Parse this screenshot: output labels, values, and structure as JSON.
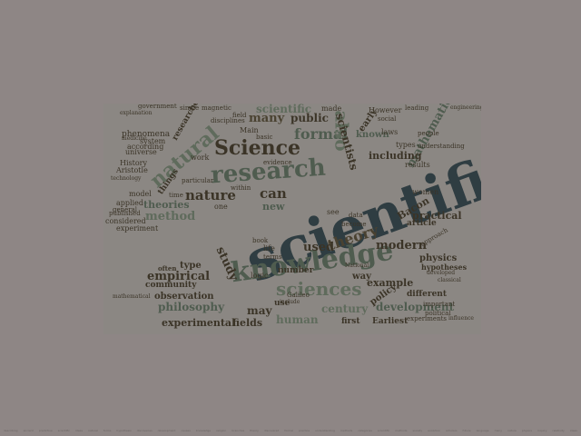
{
  "colors": {
    "background": "#8e8685",
    "cloud_background": "#8b8783",
    "dark_slate": "#2f3d42",
    "olive_green": "#4f5c4f",
    "sage": "#5f6b5c",
    "dark_brown": "#3b3427",
    "brown": "#4a4231"
  },
  "words": {
    "scientific": "scientific",
    "knowledge": "knowledge",
    "research": "research",
    "science_cap": "Science",
    "natural": "natural",
    "sciences": "sciences",
    "theory": "theory",
    "nature": "nature",
    "formal": "formal",
    "many": "many",
    "scientific_small": "scientific",
    "public": "public",
    "can": "can",
    "mathematics": "mathematics",
    "also": "also",
    "known": "known",
    "scientists": "scientists",
    "early": "early",
    "including": "including",
    "modern": "modern",
    "practical": "practical",
    "method": "method",
    "theories": "theories",
    "new": "new",
    "used": "used",
    "study": "study",
    "empirical": "empirical",
    "philosophy": "philosophy",
    "experimental": "experimental",
    "human": "human",
    "century": "century",
    "development": "development",
    "fields": "fields",
    "may": "may",
    "use": "use",
    "first": "first",
    "earliest": "Earliest",
    "observation": "observation",
    "community": "community",
    "example": "example",
    "policy": "policy",
    "different": "different",
    "number": "number",
    "way": "way",
    "physics": "physics",
    "article": "article",
    "bacon": "Bacon",
    "hypotheses": "hypotheses",
    "type": "type",
    "often": "often",
    "things": "things",
    "researchers": "researchers",
    "phenomena": "phenomena",
    "made": "made",
    "however": "However",
    "laws": "laws",
    "types": "types",
    "results": "results",
    "women": "women",
    "universe": "universe",
    "history": "History",
    "aristotle": "Aristotle",
    "experiment": "experiment",
    "considered": "considered",
    "model": "model",
    "applied": "applied",
    "general": "general",
    "published": "published",
    "according": "according",
    "system": "system",
    "work": "work",
    "main": "Main",
    "basic": "basic",
    "evidence": "evidence",
    "time": "time",
    "one": "one",
    "see": "see",
    "life": "life",
    "logic": "logic",
    "important": "important",
    "political": "political",
    "experiments": "experiments",
    "galileo": "Galileo",
    "include": "include",
    "mathematical": "mathematical",
    "field": "field",
    "government": "government",
    "single": "single",
    "magnetic": "magnetic",
    "disciplines": "disciplines",
    "social": "social",
    "people": "people",
    "leading": "leading",
    "understanding": "understanding",
    "approach": "approach",
    "become": "become",
    "data": "data",
    "book": "book",
    "national": "National",
    "within": "within",
    "particular": "particular",
    "terms": "terms",
    "explanation": "explanation",
    "medicine": "medicine",
    "technology": "technology",
    "engineering": "engineering",
    "developed": "developed",
    "classical": "classical",
    "influence": "influence"
  },
  "footer_words": [
    "describing",
    "ancient",
    "predictive",
    "scientific",
    "ideas",
    "natural",
    "forms",
    "hypothesis",
    "discoveries",
    "development",
    "causes",
    "knowledge",
    "religion",
    "branches",
    "theory",
    "discovered",
    "formal",
    "practice",
    "understanding",
    "methods",
    "categories",
    "scientific",
    "methods",
    "society",
    "evolution",
    "scholars",
    "future",
    "language",
    "many",
    "nature",
    "physics",
    "inquiry",
    "relativity",
    "ideas"
  ]
}
